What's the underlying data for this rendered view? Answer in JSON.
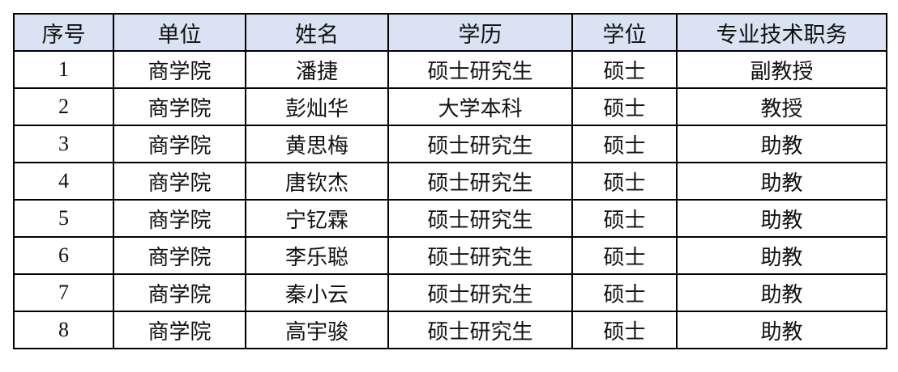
{
  "table": {
    "headers": [
      "序号",
      "单位",
      "姓名",
      "学历",
      "学位",
      "专业技术职务"
    ],
    "rows": [
      [
        "1",
        "商学院",
        "潘捷",
        "硕士研究生",
        "硕士",
        "副教授"
      ],
      [
        "2",
        "商学院",
        "彭灿华",
        "大学本科",
        "硕士",
        "教授"
      ],
      [
        "3",
        "商学院",
        "黄思梅",
        "硕士研究生",
        "硕士",
        "助教"
      ],
      [
        "4",
        "商学院",
        "唐钦杰",
        "硕士研究生",
        "硕士",
        "助教"
      ],
      [
        "5",
        "商学院",
        "宁钇霖",
        "硕士研究生",
        "硕士",
        "助教"
      ],
      [
        "6",
        "商学院",
        "李乐聪",
        "硕士研究生",
        "硕士",
        "助教"
      ],
      [
        "7",
        "商学院",
        "秦小云",
        "硕士研究生",
        "硕士",
        "助教"
      ],
      [
        "8",
        "商学院",
        "高宇骏",
        "硕士研究生",
        "硕士",
        "助教"
      ]
    ],
    "header_color": "#dae3f3"
  }
}
